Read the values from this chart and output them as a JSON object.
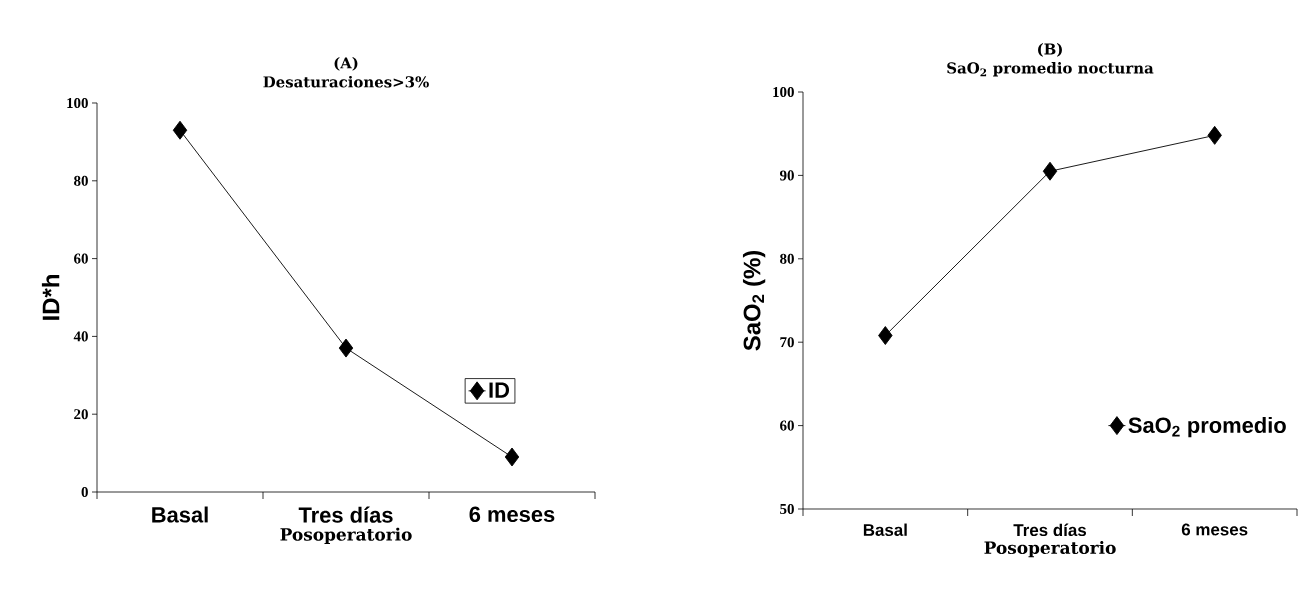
{
  "chart_data": [
    {
      "type": "line",
      "title": "(A)",
      "subtitle": "Desaturaciones>3%",
      "xlabel": "Posoperatorio",
      "ylabel": "ID*h",
      "categories": [
        "Basal",
        "Tres días",
        "6 meses"
      ],
      "series": [
        {
          "name": "ID",
          "color": "#000000",
          "values": [
            93,
            37,
            9
          ]
        }
      ],
      "ylim": [
        0,
        100
      ],
      "yticks": [
        0,
        20,
        40,
        60,
        80,
        100
      ],
      "legend": "right",
      "marker": "diamond",
      "grid": false
    },
    {
      "type": "line",
      "title": "(B)",
      "subtitle": "SaO$_{2}$ promedio nocturna",
      "xlabel": "Posoperatorio",
      "ylabel": "SaO$_{2}$ (%)",
      "categories": [
        "Basal",
        "Tres días",
        "6 meses"
      ],
      "series": [
        {
          "name": "SaO$_{2}$  promedio",
          "color": "#000000",
          "values": [
            70.8,
            90.5,
            94.8
          ]
        }
      ],
      "ylim": [
        50,
        100
      ],
      "yticks": [
        50,
        60,
        70,
        80,
        90,
        100
      ],
      "legend": "bottom right",
      "marker": "diamond",
      "grid": false
    }
  ]
}
